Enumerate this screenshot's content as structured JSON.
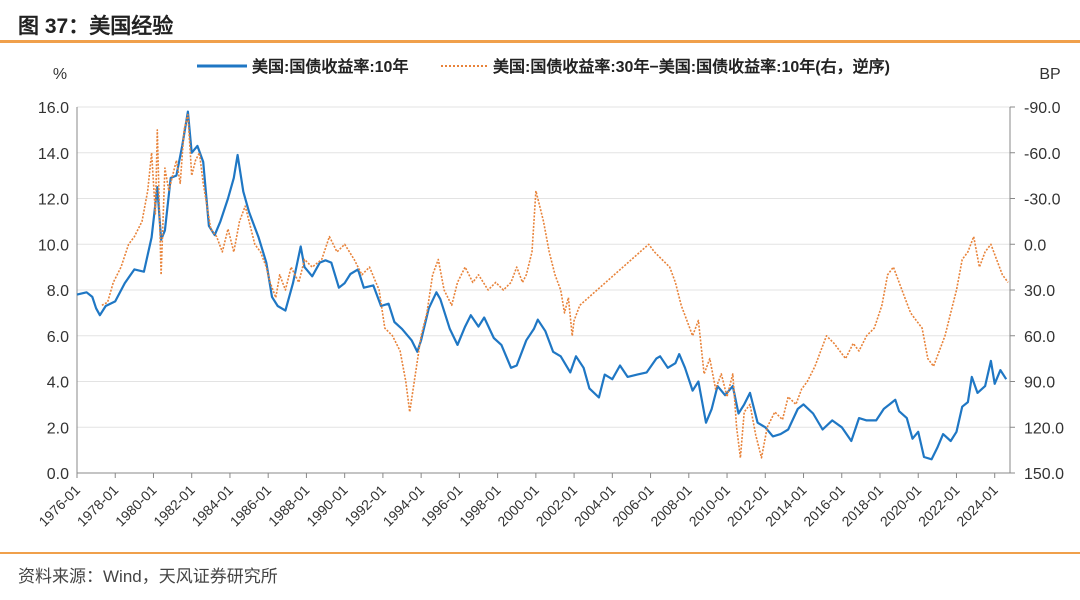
{
  "header": {
    "title": "图 37：美国经验"
  },
  "footer": {
    "source": "资料来源：Wind，天风证券研究所"
  },
  "chart_data": {
    "type": "line",
    "left_unit": "%",
    "right_unit": "BP",
    "left_ylim": [
      0,
      16
    ],
    "left_ticks": [
      "0.0",
      "2.0",
      "4.0",
      "6.0",
      "8.0",
      "10.0",
      "12.0",
      "14.0",
      "16.0"
    ],
    "right_ylim_inverted": [
      -90,
      150
    ],
    "right_ticks": [
      "-90.0",
      "-60.0",
      "-30.0",
      "0.0",
      "30.0",
      "60.0",
      "90.0",
      "120.0",
      "150.0"
    ],
    "x_ticks": [
      "1976-01",
      "1978-01",
      "1980-01",
      "1982-01",
      "1984-01",
      "1986-01",
      "1988-01",
      "1990-01",
      "1992-01",
      "1994-01",
      "1996-01",
      "1998-01",
      "2000-01",
      "2002-01",
      "2004-01",
      "2006-01",
      "2008-01",
      "2010-01",
      "2012-01",
      "2014-01",
      "2016-01",
      "2018-01",
      "2020-01",
      "2022-01",
      "2024-01"
    ],
    "xlim": [
      1976.0,
      2024.8
    ],
    "grid": true,
    "legend_position": "top",
    "series": [
      {
        "name": "美国:国债收益率:10年",
        "axis": "left",
        "color": "#1F77C4",
        "style": "solid",
        "points": [
          [
            1976.0,
            7.8
          ],
          [
            1976.5,
            7.9
          ],
          [
            1976.8,
            7.7
          ],
          [
            1977.0,
            7.2
          ],
          [
            1977.2,
            6.9
          ],
          [
            1977.5,
            7.3
          ],
          [
            1978.0,
            7.5
          ],
          [
            1978.5,
            8.3
          ],
          [
            1979.0,
            8.9
          ],
          [
            1979.5,
            8.8
          ],
          [
            1979.9,
            10.3
          ],
          [
            1980.2,
            12.5
          ],
          [
            1980.4,
            10.2
          ],
          [
            1980.6,
            10.6
          ],
          [
            1980.9,
            12.9
          ],
          [
            1981.2,
            13.0
          ],
          [
            1981.5,
            14.3
          ],
          [
            1981.8,
            15.8
          ],
          [
            1982.0,
            14.0
          ],
          [
            1982.3,
            14.3
          ],
          [
            1982.6,
            13.6
          ],
          [
            1982.9,
            10.8
          ],
          [
            1983.2,
            10.4
          ],
          [
            1983.5,
            11.0
          ],
          [
            1983.9,
            12.0
          ],
          [
            1984.2,
            12.9
          ],
          [
            1984.4,
            13.9
          ],
          [
            1984.7,
            12.3
          ],
          [
            1985.0,
            11.4
          ],
          [
            1985.5,
            10.3
          ],
          [
            1985.9,
            9.2
          ],
          [
            1986.2,
            7.7
          ],
          [
            1986.5,
            7.3
          ],
          [
            1986.9,
            7.1
          ],
          [
            1987.3,
            8.3
          ],
          [
            1987.7,
            9.9
          ],
          [
            1987.9,
            9.0
          ],
          [
            1988.3,
            8.6
          ],
          [
            1988.7,
            9.2
          ],
          [
            1989.0,
            9.3
          ],
          [
            1989.3,
            9.2
          ],
          [
            1989.7,
            8.1
          ],
          [
            1990.0,
            8.3
          ],
          [
            1990.3,
            8.7
          ],
          [
            1990.7,
            8.9
          ],
          [
            1991.0,
            8.1
          ],
          [
            1991.5,
            8.2
          ],
          [
            1991.9,
            7.3
          ],
          [
            1992.3,
            7.4
          ],
          [
            1992.6,
            6.6
          ],
          [
            1993.0,
            6.3
          ],
          [
            1993.5,
            5.8
          ],
          [
            1993.8,
            5.3
          ],
          [
            1994.0,
            5.8
          ],
          [
            1994.4,
            7.2
          ],
          [
            1994.8,
            7.9
          ],
          [
            1995.0,
            7.6
          ],
          [
            1995.5,
            6.3
          ],
          [
            1995.9,
            5.6
          ],
          [
            1996.3,
            6.4
          ],
          [
            1996.6,
            6.9
          ],
          [
            1997.0,
            6.4
          ],
          [
            1997.3,
            6.8
          ],
          [
            1997.8,
            5.9
          ],
          [
            1998.2,
            5.6
          ],
          [
            1998.7,
            4.6
          ],
          [
            1999.0,
            4.7
          ],
          [
            1999.5,
            5.8
          ],
          [
            1999.9,
            6.3
          ],
          [
            2000.1,
            6.7
          ],
          [
            2000.5,
            6.2
          ],
          [
            2000.9,
            5.3
          ],
          [
            2001.3,
            5.1
          ],
          [
            2001.8,
            4.4
          ],
          [
            2002.1,
            5.1
          ],
          [
            2002.5,
            4.6
          ],
          [
            2002.8,
            3.7
          ],
          [
            2003.3,
            3.3
          ],
          [
            2003.6,
            4.3
          ],
          [
            2004.0,
            4.1
          ],
          [
            2004.4,
            4.7
          ],
          [
            2004.8,
            4.2
          ],
          [
            2005.3,
            4.3
          ],
          [
            2005.8,
            4.4
          ],
          [
            2006.3,
            5.0
          ],
          [
            2006.5,
            5.1
          ],
          [
            2006.9,
            4.6
          ],
          [
            2007.3,
            4.8
          ],
          [
            2007.5,
            5.2
          ],
          [
            2007.8,
            4.6
          ],
          [
            2008.2,
            3.6
          ],
          [
            2008.5,
            4.0
          ],
          [
            2008.9,
            2.2
          ],
          [
            2009.2,
            2.8
          ],
          [
            2009.5,
            3.8
          ],
          [
            2009.9,
            3.4
          ],
          [
            2010.3,
            3.8
          ],
          [
            2010.6,
            2.6
          ],
          [
            2010.9,
            3.0
          ],
          [
            2011.2,
            3.5
          ],
          [
            2011.6,
            2.2
          ],
          [
            2012.0,
            2.0
          ],
          [
            2012.4,
            1.6
          ],
          [
            2012.8,
            1.7
          ],
          [
            2013.2,
            1.9
          ],
          [
            2013.7,
            2.8
          ],
          [
            2014.0,
            3.0
          ],
          [
            2014.5,
            2.6
          ],
          [
            2015.0,
            1.9
          ],
          [
            2015.5,
            2.3
          ],
          [
            2016.0,
            2.0
          ],
          [
            2016.5,
            1.4
          ],
          [
            2016.9,
            2.4
          ],
          [
            2017.3,
            2.3
          ],
          [
            2017.8,
            2.3
          ],
          [
            2018.2,
            2.8
          ],
          [
            2018.8,
            3.2
          ],
          [
            2019.0,
            2.7
          ],
          [
            2019.4,
            2.4
          ],
          [
            2019.7,
            1.5
          ],
          [
            2020.0,
            1.8
          ],
          [
            2020.3,
            0.7
          ],
          [
            2020.7,
            0.6
          ],
          [
            2021.0,
            1.1
          ],
          [
            2021.3,
            1.7
          ],
          [
            2021.7,
            1.4
          ],
          [
            2022.0,
            1.8
          ],
          [
            2022.3,
            2.9
          ],
          [
            2022.6,
            3.1
          ],
          [
            2022.8,
            4.2
          ],
          [
            2023.1,
            3.5
          ],
          [
            2023.5,
            3.8
          ],
          [
            2023.8,
            4.9
          ],
          [
            2024.0,
            3.9
          ],
          [
            2024.3,
            4.5
          ],
          [
            2024.6,
            4.1
          ]
        ]
      },
      {
        "name": "美国:国债收益率:30年−美国:国债收益率:10年(右，逆序)",
        "axis": "right",
        "color": "#E8833A",
        "style": "dotted",
        "points": [
          [
            1977.3,
            40
          ],
          [
            1977.6,
            38
          ],
          [
            1977.9,
            25
          ],
          [
            1978.3,
            15
          ],
          [
            1978.7,
            0
          ],
          [
            1979.0,
            -5
          ],
          [
            1979.4,
            -15
          ],
          [
            1979.7,
            -35
          ],
          [
            1979.9,
            -60
          ],
          [
            1980.1,
            -20
          ],
          [
            1980.2,
            -75
          ],
          [
            1980.4,
            20
          ],
          [
            1980.6,
            -50
          ],
          [
            1980.8,
            -35
          ],
          [
            1981.0,
            -45
          ],
          [
            1981.2,
            -55
          ],
          [
            1981.4,
            -40
          ],
          [
            1981.6,
            -75
          ],
          [
            1981.8,
            -85
          ],
          [
            1982.0,
            -45
          ],
          [
            1982.2,
            -55
          ],
          [
            1982.4,
            -60
          ],
          [
            1982.6,
            -40
          ],
          [
            1982.8,
            -25
          ],
          [
            1983.0,
            -10
          ],
          [
            1983.3,
            -5
          ],
          [
            1983.6,
            5
          ],
          [
            1983.9,
            -10
          ],
          [
            1984.2,
            5
          ],
          [
            1984.5,
            -15
          ],
          [
            1984.8,
            -25
          ],
          [
            1985.0,
            -15
          ],
          [
            1985.3,
            0
          ],
          [
            1985.6,
            5
          ],
          [
            1985.9,
            15
          ],
          [
            1986.1,
            25
          ],
          [
            1986.4,
            35
          ],
          [
            1986.6,
            20
          ],
          [
            1986.9,
            30
          ],
          [
            1987.2,
            15
          ],
          [
            1987.6,
            25
          ],
          [
            1987.9,
            10
          ],
          [
            1988.3,
            15
          ],
          [
            1988.8,
            10
          ],
          [
            1989.2,
            -5
          ],
          [
            1989.6,
            5
          ],
          [
            1990.0,
            0
          ],
          [
            1990.5,
            10
          ],
          [
            1990.9,
            20
          ],
          [
            1991.3,
            15
          ],
          [
            1991.8,
            30
          ],
          [
            1992.1,
            55
          ],
          [
            1992.5,
            60
          ],
          [
            1992.9,
            70
          ],
          [
            1993.2,
            90
          ],
          [
            1993.4,
            110
          ],
          [
            1993.7,
            85
          ],
          [
            1994.0,
            60
          ],
          [
            1994.3,
            45
          ],
          [
            1994.6,
            20
          ],
          [
            1994.9,
            10
          ],
          [
            1995.2,
            30
          ],
          [
            1995.6,
            40
          ],
          [
            1995.9,
            25
          ],
          [
            1996.3,
            15
          ],
          [
            1996.7,
            25
          ],
          [
            1997.0,
            20
          ],
          [
            1997.5,
            30
          ],
          [
            1997.9,
            25
          ],
          [
            1998.3,
            30
          ],
          [
            1998.7,
            25
          ],
          [
            1999.0,
            15
          ],
          [
            1999.3,
            25
          ],
          [
            1999.5,
            20
          ],
          [
            1999.8,
            5
          ],
          [
            2000.0,
            -35
          ],
          [
            2000.2,
            -25
          ],
          [
            2000.4,
            -15
          ],
          [
            2000.7,
            5
          ],
          [
            2001.0,
            20
          ],
          [
            2001.3,
            30
          ],
          [
            2001.5,
            45
          ],
          [
            2001.7,
            35
          ],
          [
            2001.9,
            60
          ],
          [
            2002.0,
            50
          ],
          [
            2002.3,
            40
          ],
          [
            2005.9,
            0
          ],
          [
            2006.2,
            5
          ],
          [
            2006.6,
            10
          ],
          [
            2007.0,
            15
          ],
          [
            2007.3,
            25
          ],
          [
            2007.6,
            40
          ],
          [
            2007.9,
            50
          ],
          [
            2008.2,
            60
          ],
          [
            2008.5,
            50
          ],
          [
            2008.8,
            85
          ],
          [
            2009.1,
            75
          ],
          [
            2009.4,
            95
          ],
          [
            2009.7,
            85
          ],
          [
            2010.0,
            100
          ],
          [
            2010.3,
            85
          ],
          [
            2010.5,
            120
          ],
          [
            2010.7,
            140
          ],
          [
            2010.9,
            110
          ],
          [
            2011.2,
            105
          ],
          [
            2011.5,
            125
          ],
          [
            2011.8,
            140
          ],
          [
            2012.1,
            120
          ],
          [
            2012.5,
            110
          ],
          [
            2012.9,
            115
          ],
          [
            2013.2,
            100
          ],
          [
            2013.6,
            105
          ],
          [
            2013.9,
            95
          ],
          [
            2014.2,
            90
          ],
          [
            2014.6,
            80
          ],
          [
            2014.9,
            70
          ],
          [
            2015.2,
            60
          ],
          [
            2015.6,
            65
          ],
          [
            2015.9,
            70
          ],
          [
            2016.2,
            75
          ],
          [
            2016.6,
            65
          ],
          [
            2016.9,
            70
          ],
          [
            2017.3,
            60
          ],
          [
            2017.7,
            55
          ],
          [
            2018.1,
            40
          ],
          [
            2018.4,
            20
          ],
          [
            2018.7,
            15
          ],
          [
            2019.0,
            25
          ],
          [
            2019.3,
            35
          ],
          [
            2019.6,
            45
          ],
          [
            2019.9,
            50
          ],
          [
            2020.2,
            55
          ],
          [
            2020.5,
            75
          ],
          [
            2020.8,
            80
          ],
          [
            2021.1,
            70
          ],
          [
            2021.4,
            60
          ],
          [
            2021.7,
            45
          ],
          [
            2022.0,
            30
          ],
          [
            2022.3,
            10
          ],
          [
            2022.6,
            5
          ],
          [
            2022.9,
            -5
          ],
          [
            2023.2,
            15
          ],
          [
            2023.5,
            5
          ],
          [
            2023.8,
            0
          ],
          [
            2024.1,
            10
          ],
          [
            2024.4,
            20
          ],
          [
            2024.7,
            25
          ]
        ]
      }
    ]
  }
}
